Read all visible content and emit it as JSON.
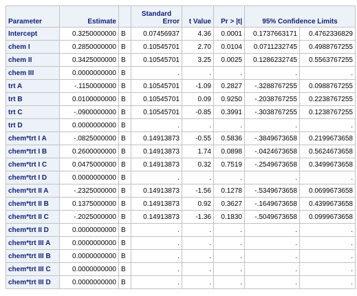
{
  "table": {
    "columns": [
      {
        "key": "parameter",
        "label": "Parameter"
      },
      {
        "key": "estimate",
        "label": "Estimate"
      },
      {
        "key": "bias",
        "label": ""
      },
      {
        "key": "stderr",
        "label_line1": "Standard",
        "label_line2": "Error"
      },
      {
        "key": "tvalue",
        "label": "t Value"
      },
      {
        "key": "p",
        "label": "Pr > |t|"
      },
      {
        "key": "ci",
        "label": "95% Confidence Limits"
      }
    ],
    "rows": [
      {
        "parameter": "Intercept",
        "estimate": "0.3250000000",
        "bias": "B",
        "stderr": "0.07456937",
        "tvalue": "4.36",
        "p": "0.0001",
        "lower": "0.1737663171",
        "upper": "0.4762336829"
      },
      {
        "parameter": "chem I",
        "estimate": "0.2850000000",
        "bias": "B",
        "stderr": "0.10545701",
        "tvalue": "2.70",
        "p": "0.0104",
        "lower": "0.0711232745",
        "upper": "0.4988767255"
      },
      {
        "parameter": "chem II",
        "estimate": "0.3425000000",
        "bias": "B",
        "stderr": "0.10545701",
        "tvalue": "3.25",
        "p": "0.0025",
        "lower": "0.1286232745",
        "upper": "0.5563767255"
      },
      {
        "parameter": "chem III",
        "estimate": "0.0000000000",
        "bias": "B",
        "stderr": ".",
        "tvalue": ".",
        "p": ".",
        "lower": ".",
        "upper": "."
      },
      {
        "parameter": "trt A",
        "estimate": "-.1150000000",
        "bias": "B",
        "stderr": "0.10545701",
        "tvalue": "-1.09",
        "p": "0.2827",
        "lower": "-.3288767255",
        "upper": "0.0988767255"
      },
      {
        "parameter": "trt B",
        "estimate": "0.0100000000",
        "bias": "B",
        "stderr": "0.10545701",
        "tvalue": "0.09",
        "p": "0.9250",
        "lower": "-.2038767255",
        "upper": "0.2238767255"
      },
      {
        "parameter": "trt C",
        "estimate": "-.0900000000",
        "bias": "B",
        "stderr": "0.10545701",
        "tvalue": "-0.85",
        "p": "0.3991",
        "lower": "-.3038767255",
        "upper": "0.1238767255"
      },
      {
        "parameter": "trt D",
        "estimate": "0.0000000000",
        "bias": "B",
        "stderr": ".",
        "tvalue": ".",
        "p": ".",
        "lower": ".",
        "upper": "."
      },
      {
        "parameter": "chem*trt I A",
        "estimate": "-.0825000000",
        "bias": "B",
        "stderr": "0.14913873",
        "tvalue": "-0.55",
        "p": "0.5836",
        "lower": "-.3849673658",
        "upper": "0.2199673658"
      },
      {
        "parameter": "chem*trt I B",
        "estimate": "0.2600000000",
        "bias": "B",
        "stderr": "0.14913873",
        "tvalue": "1.74",
        "p": "0.0898",
        "lower": "-.0424673658",
        "upper": "0.5624673658"
      },
      {
        "parameter": "chem*trt I C",
        "estimate": "0.0475000000",
        "bias": "B",
        "stderr": "0.14913873",
        "tvalue": "0.32",
        "p": "0.7519",
        "lower": "-.2549673658",
        "upper": "0.3499673658"
      },
      {
        "parameter": "chem*trt I D",
        "estimate": "0.0000000000",
        "bias": "B",
        "stderr": ".",
        "tvalue": ".",
        "p": ".",
        "lower": ".",
        "upper": "."
      },
      {
        "parameter": "chem*trt II A",
        "estimate": "-.2325000000",
        "bias": "B",
        "stderr": "0.14913873",
        "tvalue": "-1.56",
        "p": "0.1278",
        "lower": "-.5349673658",
        "upper": "0.0699673658"
      },
      {
        "parameter": "chem*trt II B",
        "estimate": "0.1375000000",
        "bias": "B",
        "stderr": "0.14913873",
        "tvalue": "0.92",
        "p": "0.3627",
        "lower": "-.1649673658",
        "upper": "0.4399673658"
      },
      {
        "parameter": "chem*trt II C",
        "estimate": "-.2025000000",
        "bias": "B",
        "stderr": "0.14913873",
        "tvalue": "-1.36",
        "p": "0.1830",
        "lower": "-.5049673658",
        "upper": "0.0999673658"
      },
      {
        "parameter": "chem*trt II D",
        "estimate": "0.0000000000",
        "bias": "B",
        "stderr": ".",
        "tvalue": ".",
        "p": ".",
        "lower": ".",
        "upper": "."
      },
      {
        "parameter": "chem*trt III A",
        "estimate": "0.0000000000",
        "bias": "B",
        "stderr": ".",
        "tvalue": ".",
        "p": ".",
        "lower": ".",
        "upper": "."
      },
      {
        "parameter": "chem*trt III B",
        "estimate": "0.0000000000",
        "bias": "B",
        "stderr": ".",
        "tvalue": ".",
        "p": ".",
        "lower": ".",
        "upper": "."
      },
      {
        "parameter": "chem*trt III C",
        "estimate": "0.0000000000",
        "bias": "B",
        "stderr": ".",
        "tvalue": ".",
        "p": ".",
        "lower": ".",
        "upper": "."
      },
      {
        "parameter": "chem*trt III D",
        "estimate": "0.0000000000",
        "bias": "B",
        "stderr": ".",
        "tvalue": ".",
        "p": ".",
        "lower": ".",
        "upper": "."
      }
    ]
  },
  "colors": {
    "header_bg": "#edf2f9",
    "header_text": "#112277",
    "grid": "#c1c1c1",
    "cell_text": "#000000"
  }
}
